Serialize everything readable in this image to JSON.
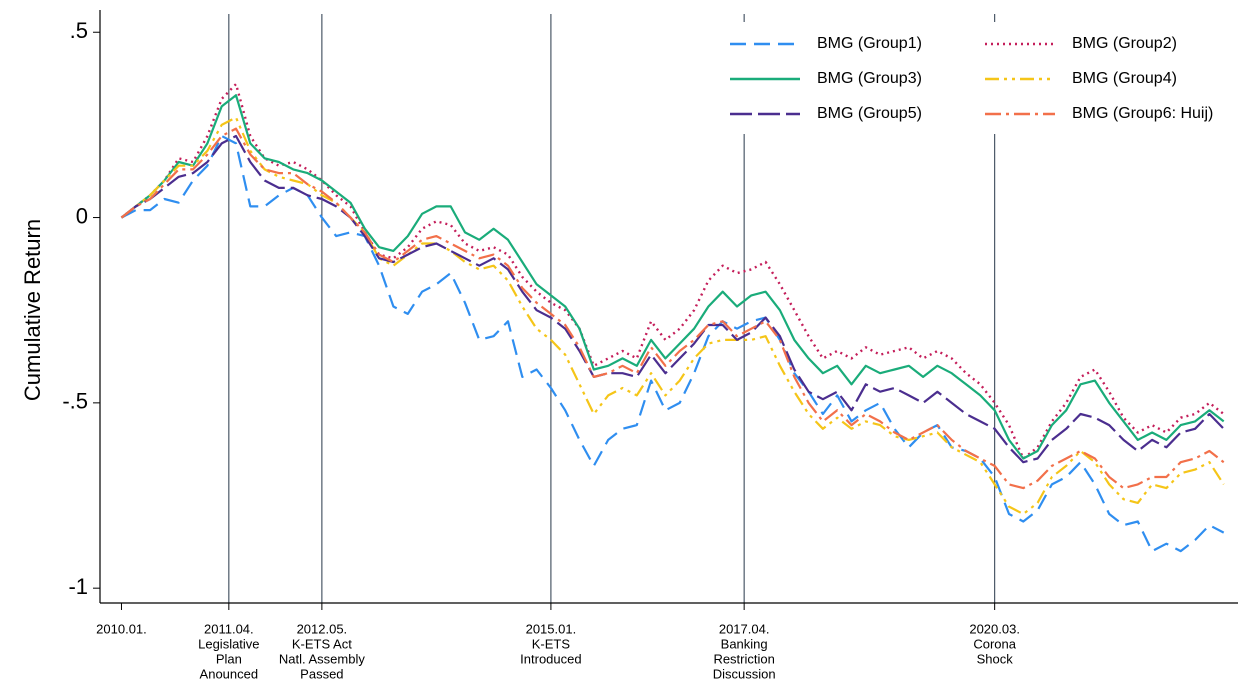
{
  "chart_data": {
    "type": "line",
    "y_label": "Cumulative Return",
    "x": [
      "2010-01",
      "2010-03",
      "2010-05",
      "2010-07",
      "2010-09",
      "2010-11",
      "2011-01",
      "2011-03",
      "2011-05",
      "2011-07",
      "2011-09",
      "2011-11",
      "2012-01",
      "2012-03",
      "2012-05",
      "2012-07",
      "2012-09",
      "2012-11",
      "2013-01",
      "2013-03",
      "2013-05",
      "2013-07",
      "2013-09",
      "2013-11",
      "2014-01",
      "2014-03",
      "2014-05",
      "2014-07",
      "2014-09",
      "2014-11",
      "2015-01",
      "2015-03",
      "2015-05",
      "2015-07",
      "2015-09",
      "2015-11",
      "2016-01",
      "2016-03",
      "2016-05",
      "2016-07",
      "2016-09",
      "2016-11",
      "2017-01",
      "2017-03",
      "2017-05",
      "2017-07",
      "2017-09",
      "2017-11",
      "2018-01",
      "2018-03",
      "2018-05",
      "2018-07",
      "2018-09",
      "2018-11",
      "2019-01",
      "2019-03",
      "2019-05",
      "2019-07",
      "2019-09",
      "2019-11",
      "2020-01",
      "2020-03",
      "2020-05",
      "2020-07",
      "2020-09",
      "2020-11",
      "2021-01",
      "2021-03",
      "2021-05",
      "2021-07",
      "2021-09",
      "2021-11",
      "2022-01",
      "2022-03",
      "2022-05",
      "2022-07",
      "2022-09",
      "2022-11"
    ],
    "series": [
      {
        "name": "BMG (Group1)",
        "color": "#2f8ef0",
        "dash": "dashed",
        "values": [
          0,
          0.02,
          0.02,
          0.05,
          0.04,
          0.1,
          0.14,
          0.22,
          0.2,
          0.03,
          0.03,
          0.06,
          0.08,
          0.06,
          0,
          -0.05,
          -0.04,
          -0.05,
          -0.13,
          -0.24,
          -0.26,
          -0.2,
          -0.18,
          -0.15,
          -0.23,
          -0.33,
          -0.32,
          -0.28,
          -0.43,
          -0.41,
          -0.46,
          -0.52,
          -0.6,
          -0.67,
          -0.6,
          -0.57,
          -0.56,
          -0.44,
          -0.52,
          -0.5,
          -0.42,
          -0.32,
          -0.28,
          -0.3,
          -0.28,
          -0.27,
          -0.33,
          -0.42,
          -0.47,
          -0.53,
          -0.48,
          -0.55,
          -0.52,
          -0.5,
          -0.57,
          -0.62,
          -0.58,
          -0.56,
          -0.62,
          -0.63,
          -0.65,
          -0.7,
          -0.8,
          -0.82,
          -0.79,
          -0.72,
          -0.7,
          -0.66,
          -0.72,
          -0.8,
          -0.83,
          -0.82,
          -0.9,
          -0.88,
          -0.9,
          -0.87,
          -0.83,
          -0.85
        ]
      },
      {
        "name": "BMG (Group2)",
        "color": "#c41e5a",
        "dash": "dotted",
        "values": [
          0,
          0.03,
          0.06,
          0.1,
          0.16,
          0.15,
          0.22,
          0.32,
          0.36,
          0.22,
          0.16,
          0.14,
          0.15,
          0.13,
          0.1,
          0.06,
          0.03,
          -0.04,
          -0.1,
          -0.11,
          -0.08,
          -0.03,
          -0.01,
          -0.02,
          -0.07,
          -0.09,
          -0.08,
          -0.1,
          -0.16,
          -0.2,
          -0.23,
          -0.25,
          -0.3,
          -0.4,
          -0.38,
          -0.36,
          -0.38,
          -0.28,
          -0.33,
          -0.3,
          -0.25,
          -0.17,
          -0.13,
          -0.15,
          -0.14,
          -0.12,
          -0.18,
          -0.25,
          -0.32,
          -0.38,
          -0.36,
          -0.38,
          -0.35,
          -0.37,
          -0.36,
          -0.35,
          -0.38,
          -0.36,
          -0.38,
          -0.42,
          -0.45,
          -0.5,
          -0.56,
          -0.65,
          -0.62,
          -0.55,
          -0.5,
          -0.43,
          -0.41,
          -0.47,
          -0.54,
          -0.58,
          -0.56,
          -0.58,
          -0.54,
          -0.53,
          -0.5,
          -0.53
        ]
      },
      {
        "name": "BMG (Group3)",
        "color": "#1aac7a",
        "dash": "solid",
        "values": [
          0,
          0.03,
          0.06,
          0.1,
          0.15,
          0.14,
          0.2,
          0.3,
          0.33,
          0.2,
          0.16,
          0.15,
          0.13,
          0.12,
          0.1,
          0.07,
          0.04,
          -0.03,
          -0.08,
          -0.09,
          -0.05,
          0.01,
          0.03,
          0.03,
          -0.04,
          -0.06,
          -0.03,
          -0.06,
          -0.12,
          -0.18,
          -0.21,
          -0.24,
          -0.3,
          -0.41,
          -0.4,
          -0.38,
          -0.4,
          -0.33,
          -0.38,
          -0.34,
          -0.3,
          -0.24,
          -0.2,
          -0.24,
          -0.21,
          -0.2,
          -0.25,
          -0.33,
          -0.38,
          -0.42,
          -0.4,
          -0.45,
          -0.4,
          -0.42,
          -0.41,
          -0.4,
          -0.43,
          -0.4,
          -0.42,
          -0.45,
          -0.48,
          -0.52,
          -0.6,
          -0.65,
          -0.63,
          -0.56,
          -0.52,
          -0.45,
          -0.44,
          -0.5,
          -0.55,
          -0.6,
          -0.58,
          -0.6,
          -0.56,
          -0.55,
          -0.52,
          -0.55
        ]
      },
      {
        "name": "BMG (Group4)",
        "color": "#f5c518",
        "dash": "dashdotdot",
        "values": [
          0,
          0.03,
          0.06,
          0.1,
          0.14,
          0.14,
          0.18,
          0.25,
          0.27,
          0.18,
          0.13,
          0.11,
          0.1,
          0.09,
          0.06,
          0.04,
          0,
          -0.04,
          -0.11,
          -0.13,
          -0.1,
          -0.07,
          -0.07,
          -0.09,
          -0.12,
          -0.14,
          -0.13,
          -0.17,
          -0.24,
          -0.3,
          -0.33,
          -0.37,
          -0.45,
          -0.53,
          -0.48,
          -0.46,
          -0.48,
          -0.42,
          -0.48,
          -0.44,
          -0.38,
          -0.34,
          -0.33,
          -0.33,
          -0.33,
          -0.32,
          -0.4,
          -0.47,
          -0.53,
          -0.57,
          -0.54,
          -0.57,
          -0.55,
          -0.56,
          -0.59,
          -0.6,
          -0.59,
          -0.58,
          -0.62,
          -0.64,
          -0.66,
          -0.72,
          -0.78,
          -0.8,
          -0.77,
          -0.7,
          -0.67,
          -0.63,
          -0.66,
          -0.72,
          -0.76,
          -0.77,
          -0.72,
          -0.73,
          -0.69,
          -0.68,
          -0.66,
          -0.72
        ]
      },
      {
        "name": "BMG (Group5)",
        "color": "#4b2e8f",
        "dash": "longdash",
        "values": [
          0,
          0.03,
          0.05,
          0.08,
          0.11,
          0.12,
          0.15,
          0.2,
          0.22,
          0.15,
          0.1,
          0.08,
          0.08,
          0.06,
          0.05,
          0.03,
          0,
          -0.05,
          -0.11,
          -0.12,
          -0.1,
          -0.08,
          -0.07,
          -0.09,
          -0.11,
          -0.13,
          -0.11,
          -0.14,
          -0.2,
          -0.25,
          -0.27,
          -0.3,
          -0.36,
          -0.43,
          -0.42,
          -0.42,
          -0.43,
          -0.37,
          -0.42,
          -0.38,
          -0.34,
          -0.29,
          -0.29,
          -0.33,
          -0.31,
          -0.27,
          -0.32,
          -0.41,
          -0.47,
          -0.49,
          -0.47,
          -0.52,
          -0.45,
          -0.47,
          -0.46,
          -0.48,
          -0.5,
          -0.47,
          -0.5,
          -0.53,
          -0.55,
          -0.57,
          -0.62,
          -0.66,
          -0.65,
          -0.6,
          -0.57,
          -0.53,
          -0.54,
          -0.56,
          -0.6,
          -0.63,
          -0.6,
          -0.62,
          -0.58,
          -0.57,
          -0.53,
          -0.57
        ]
      },
      {
        "name": "BMG (Group6: Huij)",
        "color": "#f2704a",
        "dash": "dashdot",
        "values": [
          0,
          0.03,
          0.05,
          0.09,
          0.13,
          0.13,
          0.17,
          0.22,
          0.24,
          0.17,
          0.13,
          0.12,
          0.12,
          0.09,
          0.07,
          0.04,
          0,
          -0.04,
          -0.1,
          -0.12,
          -0.09,
          -0.06,
          -0.05,
          -0.07,
          -0.09,
          -0.11,
          -0.1,
          -0.13,
          -0.19,
          -0.23,
          -0.26,
          -0.29,
          -0.35,
          -0.43,
          -0.42,
          -0.4,
          -0.42,
          -0.35,
          -0.4,
          -0.36,
          -0.33,
          -0.29,
          -0.28,
          -0.32,
          -0.3,
          -0.28,
          -0.33,
          -0.43,
          -0.5,
          -0.55,
          -0.52,
          -0.56,
          -0.53,
          -0.55,
          -0.58,
          -0.6,
          -0.58,
          -0.56,
          -0.6,
          -0.63,
          -0.65,
          -0.67,
          -0.72,
          -0.73,
          -0.71,
          -0.67,
          -0.65,
          -0.63,
          -0.65,
          -0.7,
          -0.73,
          -0.72,
          -0.7,
          -0.7,
          -0.66,
          -0.65,
          -0.63,
          -0.66
        ]
      }
    ],
    "xlim": [
      "2009-10",
      "2023-01"
    ],
    "xticks": [
      {
        "value": "2010-01",
        "label": "2010.01."
      },
      {
        "value": "2011-04",
        "label": "2011.04."
      },
      {
        "value": "2012-05",
        "label": "2012.05."
      },
      {
        "value": "2015-01",
        "label": "2015.01."
      },
      {
        "value": "2017-04",
        "label": "2017.04."
      },
      {
        "value": "2020-03",
        "label": "2020.03."
      }
    ],
    "ylim": [
      -1.04,
      0.56
    ],
    "yticks": [
      {
        "value": 0.5,
        "label": ".5"
      },
      0,
      {
        "value": -0.5,
        "label": "-.5"
      },
      -1
    ],
    "annotations": [
      {
        "x": "2011-04",
        "text": [
          "Legislative",
          "Plan",
          "Anounced"
        ]
      },
      {
        "x": "2012-05",
        "text": [
          "K-ETS Act",
          "Natl. Assembly",
          "Passed"
        ]
      },
      {
        "x": "2015-01",
        "text": [
          "K-ETS",
          "Introduced"
        ]
      },
      {
        "x": "2017-04",
        "text": [
          "Banking",
          "Restriction",
          "Discussion"
        ]
      },
      {
        "x": "2020-03",
        "text": [
          "Corona",
          "Shock"
        ]
      }
    ],
    "grid": false,
    "legend": "top-right"
  }
}
